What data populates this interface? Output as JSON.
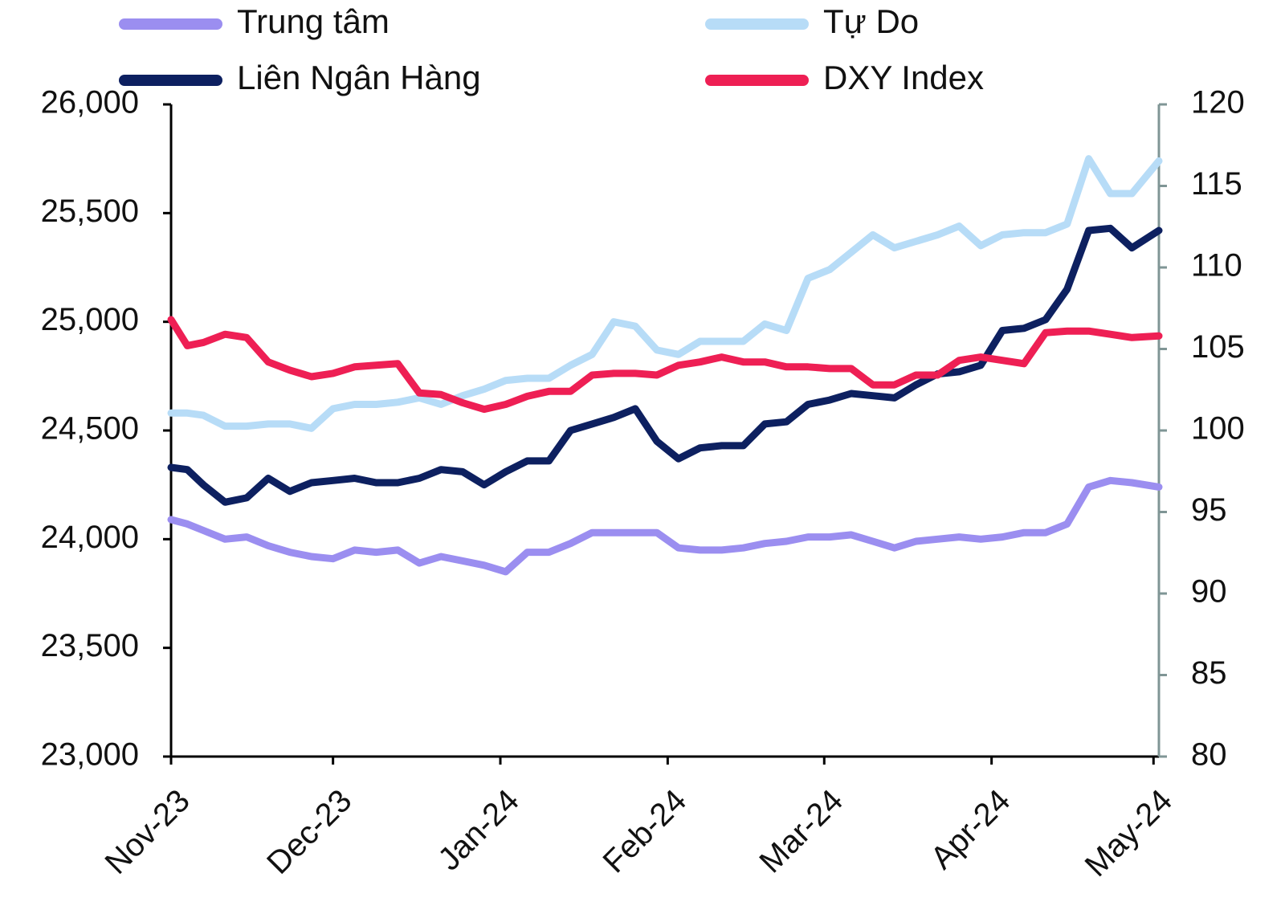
{
  "chart_data": {
    "type": "line",
    "x": [
      0,
      3,
      6,
      10,
      14,
      18,
      22,
      26,
      30,
      34,
      38,
      42,
      46,
      50,
      54,
      58,
      62,
      66,
      70,
      74,
      78,
      82,
      86,
      90,
      94,
      98,
      102,
      106,
      110,
      114,
      118,
      122,
      126,
      130,
      134,
      138,
      142,
      146,
      150,
      154,
      158,
      162,
      166,
      170,
      174,
      178,
      183
    ],
    "xlim": [
      0,
      183
    ],
    "xticks": [
      {
        "value": 0,
        "label": "Nov-23"
      },
      {
        "value": 30,
        "label": "Dec-23"
      },
      {
        "value": 61,
        "label": "Jan-24"
      },
      {
        "value": 92,
        "label": "Feb-24"
      },
      {
        "value": 121,
        "label": "Mar-24"
      },
      {
        "value": 152,
        "label": "Apr-24"
      },
      {
        "value": 182,
        "label": "May-24"
      }
    ],
    "ylim": [
      23000,
      26000
    ],
    "yticks": [
      {
        "value": 23000,
        "label": "23,000"
      },
      {
        "value": 23500,
        "label": "23,500"
      },
      {
        "value": 24000,
        "label": "24,000"
      },
      {
        "value": 24500,
        "label": "24,500"
      },
      {
        "value": 25000,
        "label": "25,000"
      },
      {
        "value": 25500,
        "label": "25,500"
      },
      {
        "value": 26000,
        "label": "26,000"
      }
    ],
    "y2lim": [
      80,
      120
    ],
    "y2ticks": [
      80,
      85,
      90,
      95,
      100,
      105,
      110,
      115,
      120
    ],
    "series": [
      {
        "name": "Trung tâm",
        "color": "#9b8ef0",
        "values": [
          24090,
          24070,
          24040,
          24000,
          24010,
          23970,
          23940,
          23920,
          23910,
          23950,
          23940,
          23950,
          23890,
          23920,
          23900,
          23880,
          23850,
          23940,
          23940,
          23980,
          24030,
          24030,
          24030,
          24030,
          23960,
          23950,
          23950,
          23960,
          23980,
          23990,
          24010,
          24010,
          24020,
          23990,
          23960,
          23990,
          24000,
          24010,
          24000,
          24010,
          24030,
          24030,
          24070,
          24240,
          24270,
          24260,
          24240
        ]
      },
      {
        "name": "Tự Do",
        "color": "#b7dcf7",
        "values": [
          24580,
          24580,
          24570,
          24520,
          24520,
          24530,
          24530,
          24510,
          24600,
          24620,
          24620,
          24630,
          24650,
          24620,
          24660,
          24690,
          24730,
          24740,
          24740,
          24800,
          24850,
          25000,
          24980,
          24870,
          24850,
          24910,
          24910,
          24910,
          24990,
          24960,
          25200,
          25240,
          25320,
          25400,
          25340,
          25370,
          25400,
          25440,
          25350,
          25400,
          25410,
          25410,
          25450,
          25750,
          25590,
          25590,
          25740
        ]
      },
      {
        "name": "Liên Ngân Hàng",
        "color": "#0d2060",
        "values": [
          24330,
          24320,
          24250,
          24170,
          24190,
          24280,
          24220,
          24260,
          24270,
          24280,
          24260,
          24260,
          24280,
          24320,
          24310,
          24250,
          24310,
          24360,
          24360,
          24500,
          24530,
          24560,
          24600,
          24450,
          24370,
          24420,
          24430,
          24430,
          24530,
          24540,
          24620,
          24640,
          24670,
          24660,
          24650,
          24710,
          24760,
          24770,
          24800,
          24960,
          24970,
          25010,
          25150,
          25420,
          25430,
          25340,
          25420
        ]
      },
      {
        "name": "DXY Index",
        "color": "#ee1f54",
        "axis": "y2",
        "values": [
          106.8,
          105.2,
          105.4,
          105.9,
          105.7,
          104.2,
          103.7,
          103.3,
          103.5,
          103.9,
          104.0,
          104.1,
          102.3,
          102.2,
          101.7,
          101.3,
          101.6,
          102.1,
          102.4,
          102.4,
          103.4,
          103.5,
          103.5,
          103.4,
          104.0,
          104.2,
          104.5,
          104.2,
          104.2,
          103.9,
          103.9,
          103.8,
          103.8,
          102.8,
          102.8,
          103.4,
          103.4,
          104.3,
          104.5,
          104.3,
          104.1,
          106.0,
          106.1,
          106.1,
          105.9,
          105.7,
          105.8
        ]
      }
    ]
  }
}
